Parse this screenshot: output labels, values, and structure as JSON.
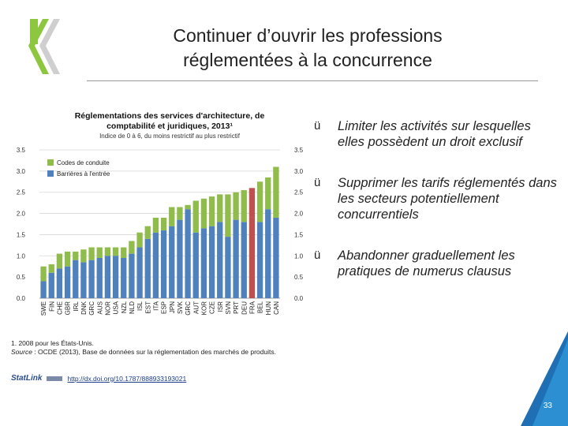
{
  "slide": {
    "title_line1": "Continuer d’ouvrir les professions",
    "title_line2": "réglementées à la concurrence",
    "page_number": "33",
    "logo": "oecd-logo"
  },
  "bullets": [
    {
      "check": "ü",
      "text": "Limiter les activités sur lesquelles elles possèdent un droit exclusif"
    },
    {
      "check": "ü",
      "text": "Supprimer les tarifs réglementés dans les secteurs potentiellement concurrentiels"
    },
    {
      "check": "ü",
      "text": "Abandonner graduellement les pratiques de numerus clausus"
    }
  ],
  "notes": {
    "line1": "1. 2008 pour les États-Unis.",
    "source_label": "Source",
    "source_text": " : OCDE (2013), Base de données sur la réglementation des marchés de produits."
  },
  "statlink": {
    "logo_text": "StatLink",
    "url": "http://dx.doi.org/10.1787/888933193021"
  },
  "chart_data": {
    "type": "bar",
    "stacked": true,
    "title_line1": "Réglementations des services d'architecture, de",
    "title_line2": "comptabilité et juridiques, 2013¹",
    "subtitle": "Indice de 0 à 6, du moins restrictif au plus restrictif",
    "categories": [
      "SWE",
      "FIN",
      "CHE",
      "GBR",
      "IRL",
      "DNK",
      "GRC",
      "AUS",
      "NOR",
      "USA",
      "NZL",
      "NLD",
      "ISL",
      "EST",
      "ITA",
      "ESP",
      "JPN",
      "SVK",
      "GRC",
      "AUT",
      "KOR",
      "CZE",
      "ISR",
      "SVN",
      "PRT",
      "DEU",
      "FRA",
      "BEL",
      "HUN",
      "CAN"
    ],
    "series": [
      {
        "name": "Barrières à l'entrée",
        "color": "#4f81bd",
        "values": [
          0.4,
          0.6,
          0.7,
          0.75,
          0.9,
          0.85,
          0.9,
          0.95,
          1.0,
          1.0,
          0.95,
          1.05,
          1.2,
          1.4,
          1.55,
          1.6,
          1.7,
          1.85,
          2.1,
          1.55,
          1.65,
          1.7,
          1.8,
          1.45,
          1.85,
          1.8,
          1.9,
          1.8,
          2.1,
          1.9
        ]
      },
      {
        "name": "Codes de conduite",
        "color": "#8fbc4a",
        "values": [
          0.35,
          0.2,
          0.35,
          0.35,
          0.2,
          0.3,
          0.3,
          0.25,
          0.2,
          0.2,
          0.25,
          0.3,
          0.35,
          0.3,
          0.35,
          0.3,
          0.45,
          0.3,
          0.1,
          0.75,
          0.7,
          0.7,
          0.65,
          1.0,
          0.65,
          0.75,
          0.7,
          0.95,
          0.75,
          1.2
        ]
      }
    ],
    "highlight": {
      "index": 26,
      "color": "#c0504d"
    },
    "ylim": [
      0,
      3.5
    ],
    "yticks": [
      "0.0",
      "0.5",
      "1.0",
      "1.5",
      "2.0",
      "2.5",
      "3.0",
      "3.5"
    ],
    "grid": true,
    "legend_position": "top-left"
  }
}
